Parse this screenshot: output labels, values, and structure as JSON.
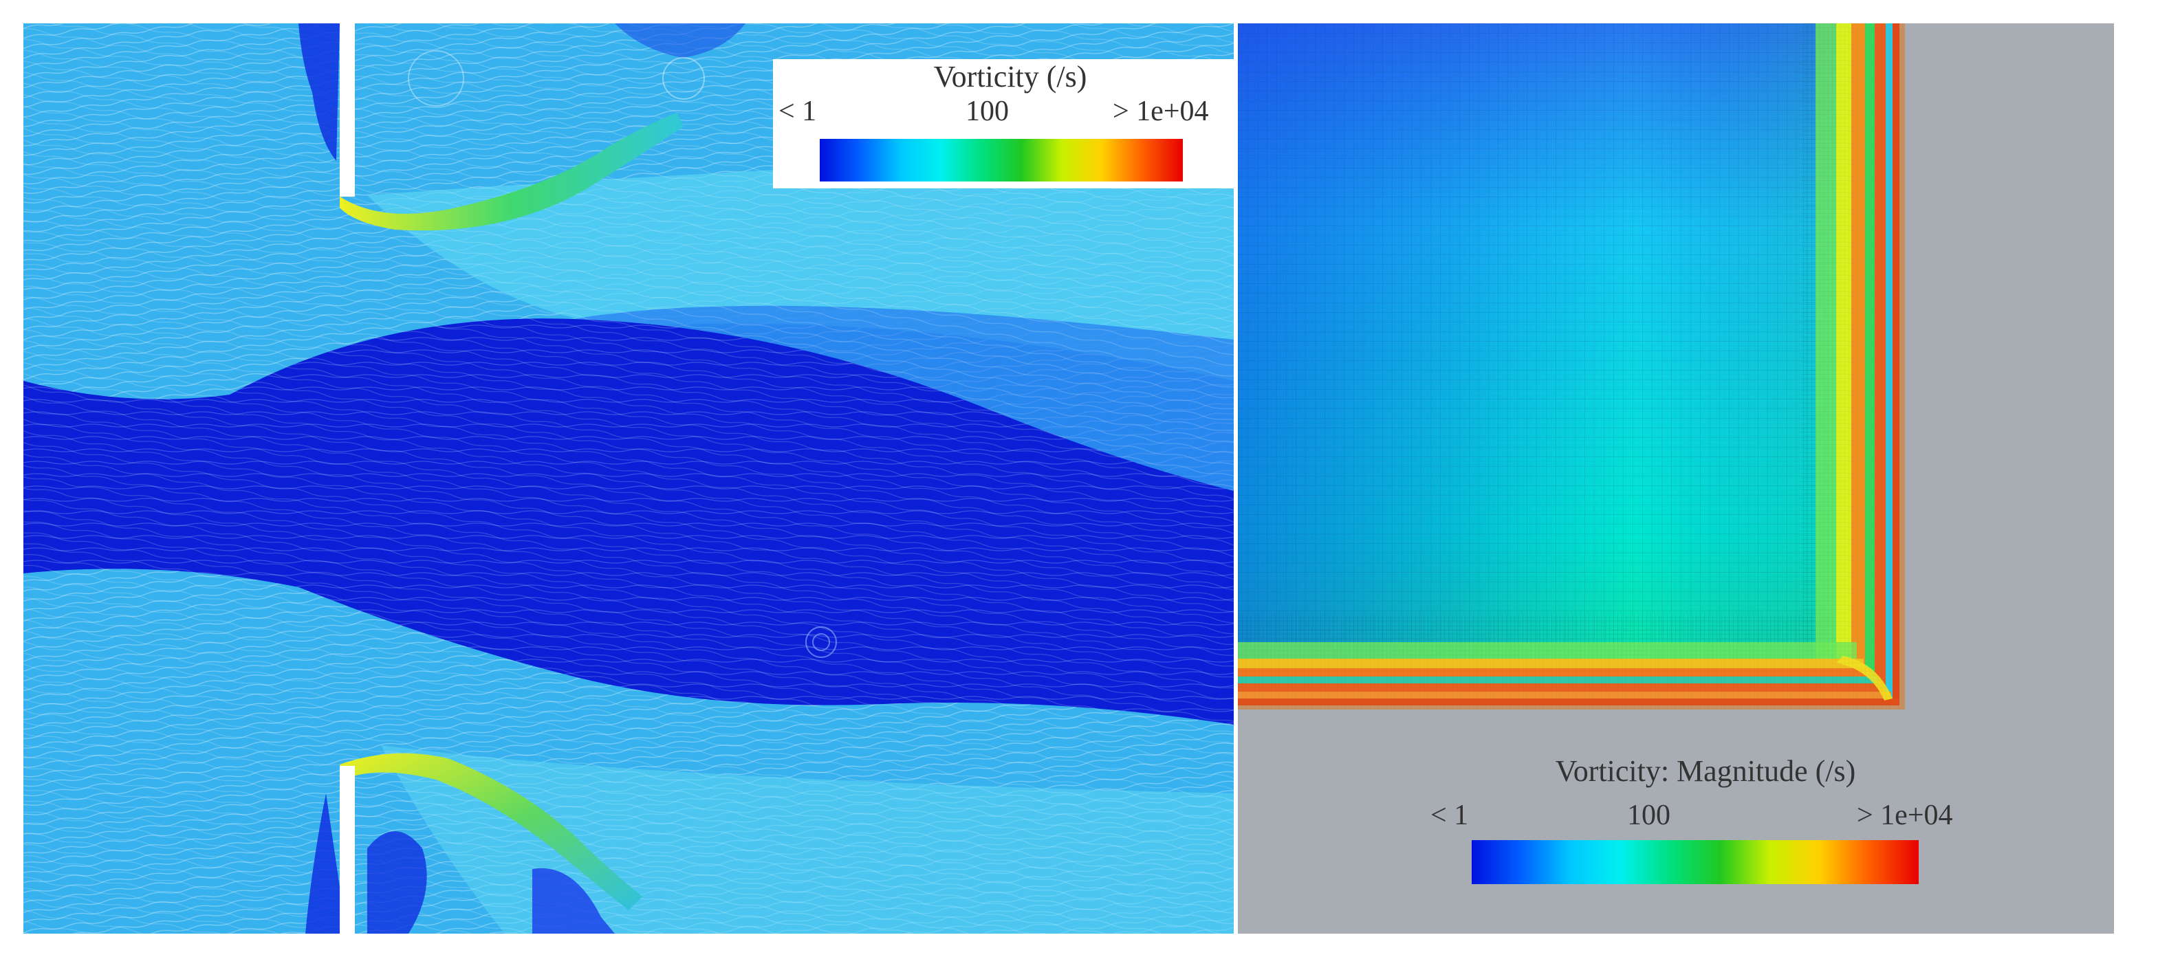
{
  "left_panel": {
    "legend": {
      "title": "Vorticity (/s)",
      "tick_min": "< 1",
      "tick_mid": "100",
      "tick_max": "> 1e+04"
    }
  },
  "right_panel": {
    "legend": {
      "title": "Vorticity: Magnitude (/s)",
      "tick_min": "< 1",
      "tick_mid": "100",
      "tick_max": "> 1e+04"
    }
  },
  "colors": {
    "colormap": [
      "#0010e0",
      "#0060ff",
      "#00c8ff",
      "#00f0f0",
      "#00e080",
      "#20c820",
      "#c8f000",
      "#ffd000",
      "#ff6000",
      "#e80000"
    ],
    "low_vorticity": "#0a1fd6",
    "mid_vorticity": "#33b8f0",
    "background_grey": "#a7adb3"
  }
}
